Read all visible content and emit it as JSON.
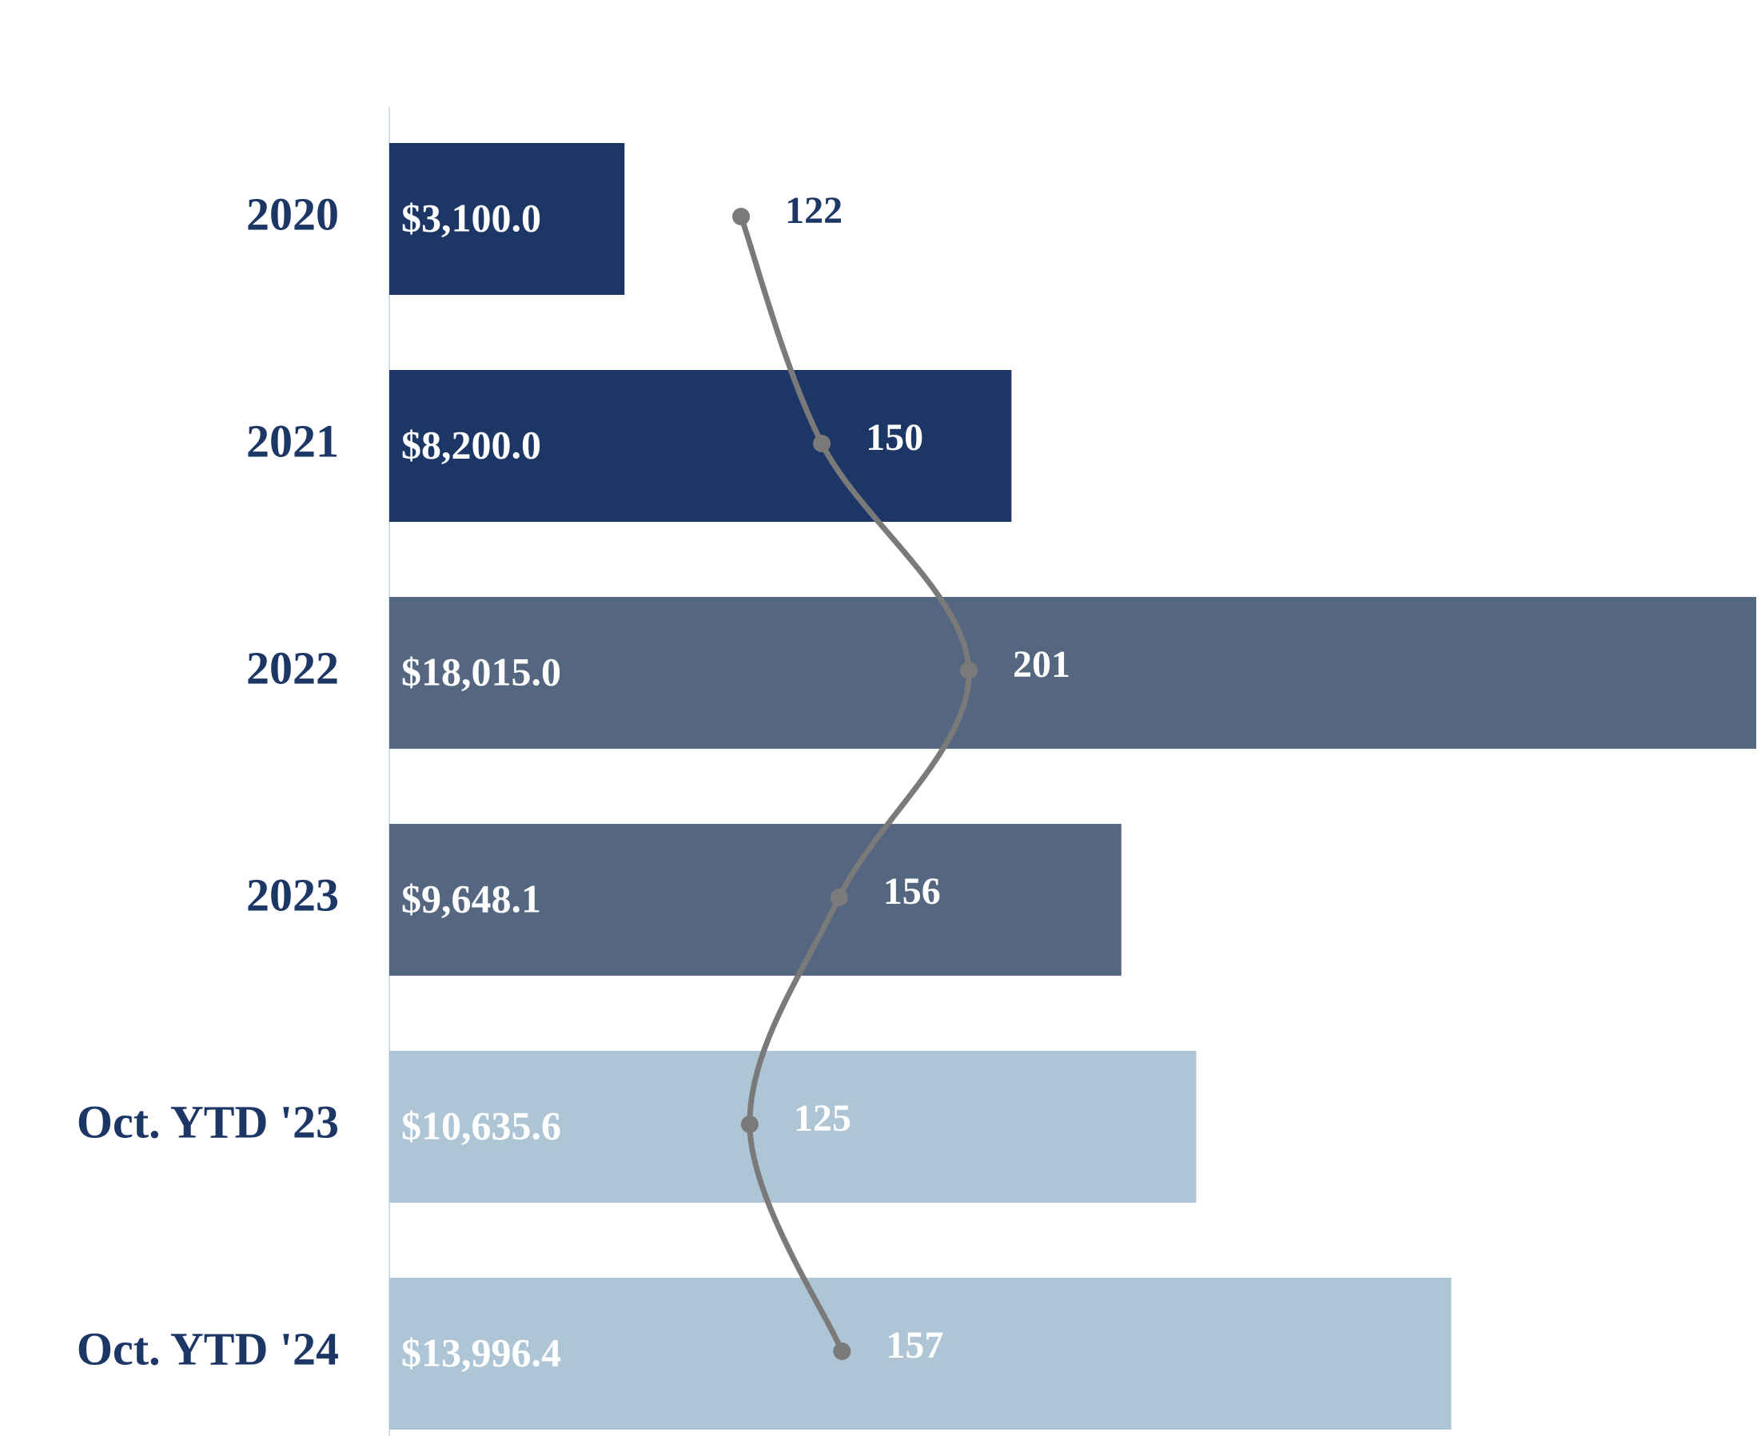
{
  "chart_data": {
    "type": "bar-line",
    "categories": [
      "2020",
      "2021",
      "2022",
      "2023",
      "Oct. YTD '23",
      "Oct. YTD '24"
    ],
    "series": [
      {
        "type": "bar",
        "colors": [
          "#1c3766",
          "#1c3766",
          "#556680",
          "#556680",
          "#aec5d5",
          "#aec5d5"
        ],
        "values": [
          3100.0,
          8200.0,
          18015.0,
          9648.1,
          10635.6,
          13996.4
        ],
        "value_labels": [
          "$3,100.0",
          "$8,200.0",
          "$18,015.0",
          "$9,648.1",
          "$10,635.6",
          "$13,996.4"
        ]
      },
      {
        "type": "line",
        "color": "#7a7a7a",
        "values": [
          122,
          150,
          201,
          156,
          125,
          157
        ]
      }
    ]
  }
}
